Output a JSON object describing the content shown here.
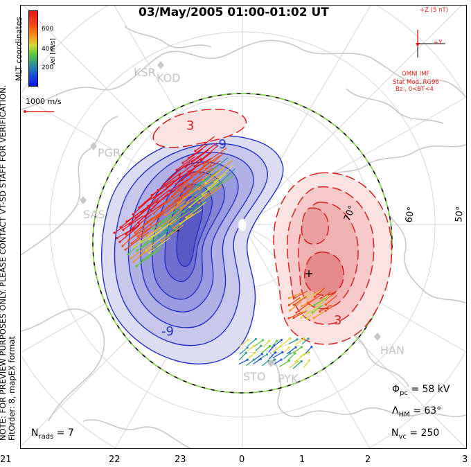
{
  "title": "03/May/2005 01:00-01:02 UT",
  "side_note": {
    "line1": "NOTE: FOR PREVIEW PURPOSES ONLY. PLEASE CONTACT VT-SD STAFF FOR VERIFICATION.",
    "line2": "FitOrder: 8, mapEX format"
  },
  "mlt_label": "MLT coordinates",
  "colorbar": {
    "title": "Vel [m/s]",
    "ticks": [
      "600",
      "400",
      "200"
    ]
  },
  "velocity_scale": {
    "label": "1000 m/s"
  },
  "imf": {
    "axis_z": "+Z (5 nT)",
    "axis_y": "+Y",
    "source": "OMNI IMF",
    "model": "Stat Mod: RG96",
    "condition": "Bz-, 0<BT<4"
  },
  "mlt_ticks": [
    "21",
    "22",
    "23",
    "0",
    "1",
    "2",
    "3"
  ],
  "lat_labels": [
    "70°",
    "60°",
    "50°"
  ],
  "stations": [
    "KSR",
    "KOD",
    "PGR",
    "SAS",
    "HAN",
    "STO",
    "PYK"
  ],
  "contour_labels": {
    "neg_outer": "-9",
    "neg_inner": "-9",
    "pos_outer": "3",
    "pos_inner": "3"
  },
  "stats": {
    "phi_pc_symbol": "Φ",
    "phi_pc_sub": "pc",
    "phi_pc_value": "= 58 kV",
    "lambda_symbol": "Λ",
    "lambda_sub": "HM",
    "lambda_value": "= 63°",
    "n_rads_symbol": "N",
    "n_rads_sub": "rads",
    "n_rads_value": "= 7",
    "n_vc_symbol": "N",
    "n_vc_sub": "vc",
    "n_vc_value": "= 250"
  },
  "colors": {
    "negative_cell": "#2230c8",
    "positive_cell": "#d81e1e",
    "boundary_dash": "#7fd040",
    "coastline": "#c8c8c8",
    "grid": "#d0d0d0"
  }
}
